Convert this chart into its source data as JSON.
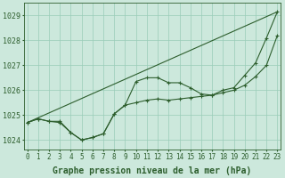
{
  "background_color": "#cce8dc",
  "plot_bg_color": "#cce8dc",
  "grid_color": "#99ccb8",
  "line_color": "#2d5e2d",
  "xlabel": "Graphe pression niveau de la mer (hPa)",
  "xlabel_fontsize": 7,
  "ylabel_fontsize": 6,
  "tick_fontsize": 5.5,
  "xlim": [
    -0.3,
    23.3
  ],
  "ylim": [
    1023.6,
    1029.5
  ],
  "yticks": [
    1024,
    1025,
    1026,
    1027,
    1028,
    1029
  ],
  "xticks": [
    0,
    1,
    2,
    3,
    4,
    5,
    6,
    7,
    8,
    9,
    10,
    11,
    12,
    13,
    14,
    15,
    16,
    17,
    18,
    19,
    20,
    21,
    22,
    23
  ],
  "series1_x": [
    0,
    1,
    2,
    3,
    4,
    5,
    6,
    7,
    8,
    9,
    10,
    11,
    12,
    13,
    14,
    15,
    16,
    17,
    18,
    19,
    20,
    21,
    22,
    23
  ],
  "series1_y": [
    1024.7,
    1024.85,
    1024.75,
    1024.75,
    1024.3,
    1024.0,
    1024.1,
    1024.25,
    1025.05,
    1025.4,
    1026.35,
    1026.5,
    1026.5,
    1026.3,
    1026.3,
    1026.1,
    1025.85,
    1025.8,
    1026.0,
    1026.1,
    1026.6,
    1027.1,
    1028.1,
    1029.15
  ],
  "series2_x": [
    0,
    1,
    2,
    3,
    4,
    5,
    6,
    7,
    8,
    9,
    10,
    11,
    12,
    13,
    14,
    15,
    16,
    17,
    18,
    19,
    20,
    21,
    22,
    23
  ],
  "series2_y": [
    1024.7,
    1024.85,
    1024.75,
    1024.7,
    1024.3,
    1024.0,
    1024.1,
    1024.25,
    1025.05,
    1025.4,
    1025.5,
    1025.6,
    1025.65,
    1025.6,
    1025.65,
    1025.7,
    1025.75,
    1025.8,
    1025.9,
    1026.0,
    1026.2,
    1026.55,
    1027.0,
    1028.2
  ],
  "trend_x": [
    0,
    23
  ],
  "trend_y": [
    1024.7,
    1029.15
  ]
}
